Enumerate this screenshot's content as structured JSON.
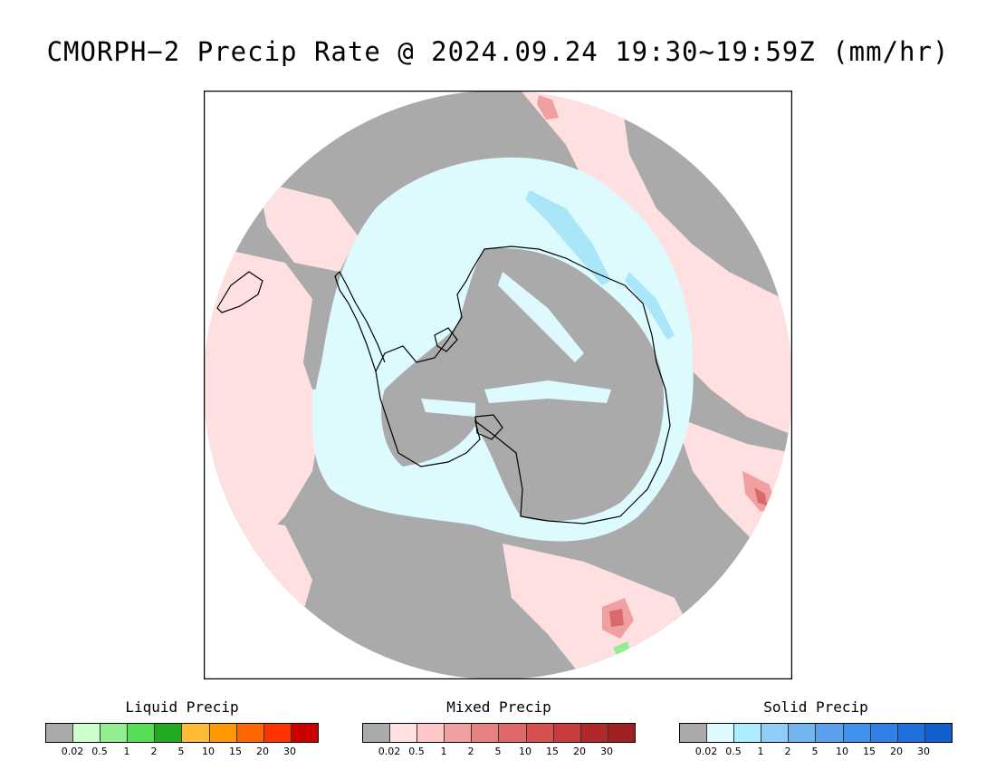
{
  "title": "CMORPH−2 Precip Rate @ 2024.09.24 19:30~19:59Z (mm/hr)",
  "map": {
    "projection": "south-polar-stereographic",
    "colors": {
      "no_precip": "#aaaaaa",
      "mixed_light": "#ffe0e0",
      "mixed_mid": "#f0a0a0",
      "mixed_heavy": "#d86a6a",
      "solid_light": "#ddfbff",
      "solid_mid": "#a8e6f8",
      "solid_heavy": "#8ecff0",
      "liquid_light": "#90ee90",
      "coastline": "#000000"
    }
  },
  "legends": [
    {
      "id": "liquid",
      "title": "Liquid Precip",
      "ticks": [
        "0.02",
        "0.5",
        "1",
        "2",
        "5",
        "10",
        "15",
        "20",
        "30"
      ],
      "colors": [
        "#aaaaaa",
        "#ccffcc",
        "#90ee90",
        "#55dd55",
        "#22aa22",
        "#ffbb33",
        "#ff9900",
        "#ff6600",
        "#ff3300",
        "#cc0000"
      ]
    },
    {
      "id": "mixed",
      "title": "Mixed Precip",
      "ticks": [
        "0.02",
        "0.5",
        "1",
        "2",
        "5",
        "10",
        "15",
        "20",
        "30"
      ],
      "colors": [
        "#aaaaaa",
        "#ffe0e0",
        "#ffc8c8",
        "#f0a0a0",
        "#e88080",
        "#e06868",
        "#d85050",
        "#c83c3c",
        "#b02828",
        "#a02020"
      ]
    },
    {
      "id": "solid",
      "title": "Solid Precip",
      "ticks": [
        "0.02",
        "0.5",
        "1",
        "2",
        "5",
        "10",
        "15",
        "20",
        "30"
      ],
      "colors": [
        "#aaaaaa",
        "#ddfbff",
        "#aaeeff",
        "#90ccf8",
        "#70b4f0",
        "#5aa0ee",
        "#4090ee",
        "#3080e8",
        "#2070e0",
        "#1060d0"
      ]
    }
  ]
}
